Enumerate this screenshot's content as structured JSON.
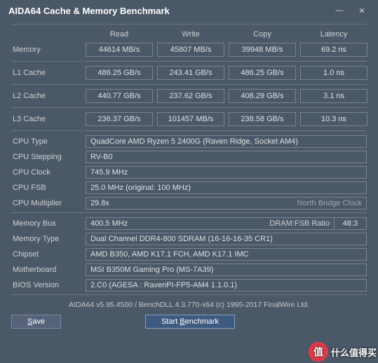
{
  "title": "AIDA64 Cache & Memory Benchmark",
  "columns": [
    "Read",
    "Write",
    "Copy",
    "Latency"
  ],
  "rows": [
    {
      "label": "Memory",
      "read": "44614 MB/s",
      "write": "45807 MB/s",
      "copy": "39948 MB/s",
      "latency": "69.2 ns"
    },
    {
      "label": "L1 Cache",
      "read": "486.25 GB/s",
      "write": "243.41 GB/s",
      "copy": "486.25 GB/s",
      "latency": "1.0 ns"
    },
    {
      "label": "L2 Cache",
      "read": "440.77 GB/s",
      "write": "237.62 GB/s",
      "copy": "408.29 GB/s",
      "latency": "3.1 ns"
    },
    {
      "label": "L3 Cache",
      "read": "236.37 GB/s",
      "write": "101457 MB/s",
      "copy": "238.58 GB/s",
      "latency": "10.3 ns"
    }
  ],
  "info": {
    "cpu_type_label": "CPU Type",
    "cpu_type": "QuadCore AMD Ryzen 5 2400G  (Raven Ridge, Socket AM4)",
    "cpu_stepping_label": "CPU Stepping",
    "cpu_stepping": "RV-B0",
    "cpu_clock_label": "CPU Clock",
    "cpu_clock": "745.9 MHz",
    "cpu_fsb_label": "CPU FSB",
    "cpu_fsb": "25.0 MHz  (original: 100 MHz)",
    "cpu_mult_label": "CPU Multiplier",
    "cpu_mult": "29.8x",
    "nb_label": "North Bridge Clock",
    "mem_bus_label": "Memory Bus",
    "mem_bus": "400.5 MHz",
    "dram_ratio_label": "DRAM:FSB Ratio",
    "dram_ratio": "48:3",
    "mem_type_label": "Memory Type",
    "mem_type": "Dual Channel DDR4-800 SDRAM  (16-16-16-35 CR1)",
    "chipset_label": "Chipset",
    "chipset": "AMD B350, AMD K17.1 FCH, AMD K17.1 IMC",
    "mobo_label": "Motherboard",
    "mobo": "MSI B350M Gaming Pro (MS-7A39)",
    "bios_label": "BIOS Version",
    "bios": "2.C0  (AGESA : RavenPI-FP5-AM4 1.1.0.1)"
  },
  "footer": "AIDA64 v5.95.4500 / BenchDLL 4.3.770-x64  (c) 1995-2017 FinalWire Ltd.",
  "buttons": {
    "save": "Save",
    "start": "Start Benchmark"
  },
  "watermark": {
    "icon": "值",
    "text": "什么值得买"
  }
}
